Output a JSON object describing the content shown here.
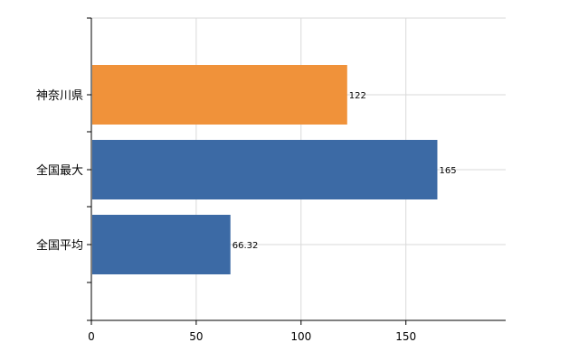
{
  "chart_data": {
    "type": "bar",
    "orientation": "horizontal",
    "categories": [
      "神奈川県",
      "全国最大",
      "全国平均"
    ],
    "values": [
      122,
      165,
      66.32
    ],
    "data_labels": [
      "122",
      "165",
      "66.32"
    ],
    "bar_colors": [
      "#f0923a",
      "#3c6aa5",
      "#3c6aa5"
    ],
    "xlim": [
      0,
      200
    ],
    "xticks": [
      0,
      50,
      100,
      150
    ],
    "xtick_labels": [
      "0",
      "50",
      "100",
      "150"
    ],
    "grid": true,
    "title": "",
    "xlabel": "",
    "ylabel": ""
  }
}
